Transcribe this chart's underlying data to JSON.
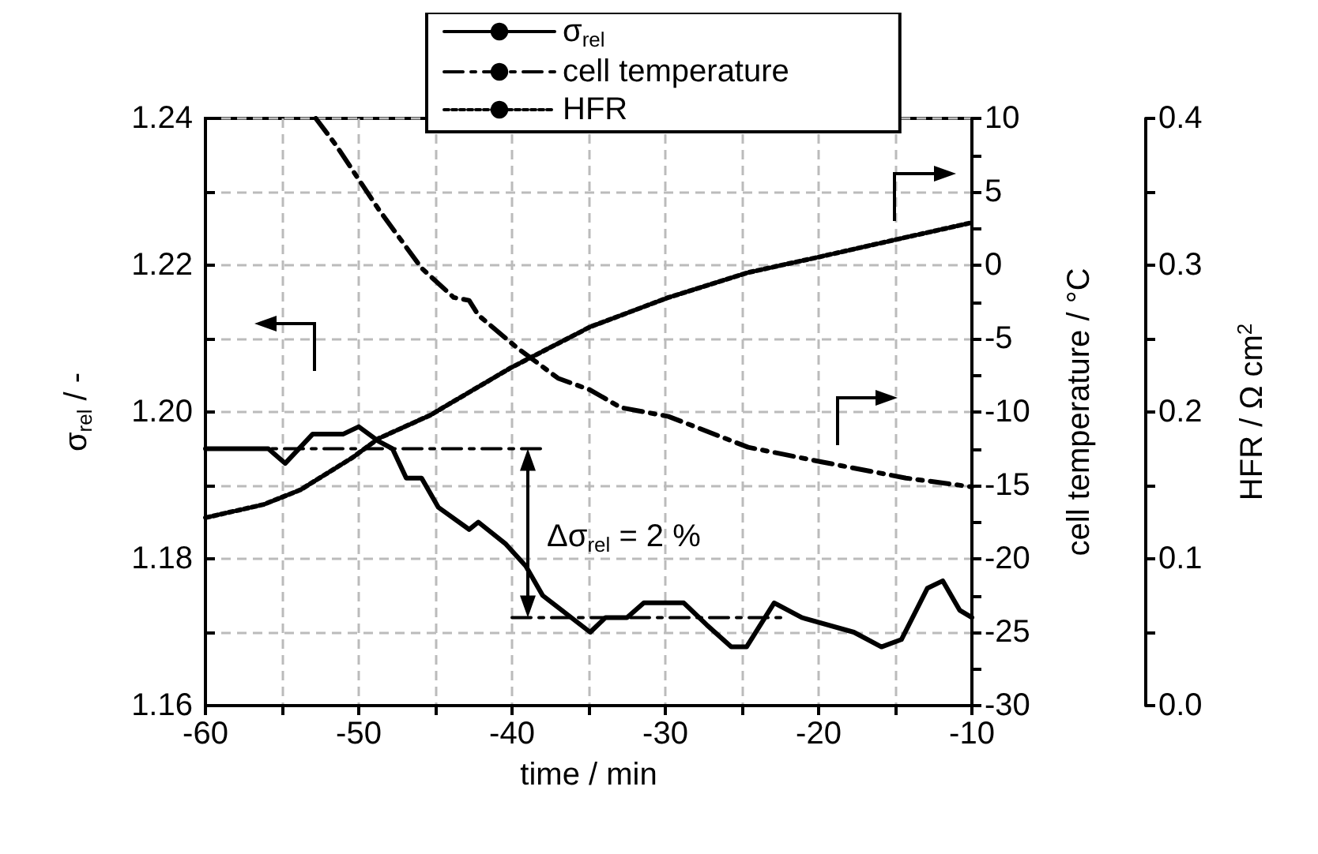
{
  "chart_data": {
    "type": "line",
    "xlabel": "time / min",
    "ylabel": "σ$_{rel}$ / -",
    "y2label": "cell temperature / °C",
    "y3label": "HFR / Ω cm$^{2}$",
    "xlim": [
      -60,
      -10
    ],
    "xticks": [
      -60,
      -50,
      -40,
      -30,
      -20,
      -10
    ],
    "ylim": [
      1.16,
      1.24
    ],
    "yticks": [
      1.16,
      1.18,
      {
        "value": 1.2,
        "label": "1.20"
      },
      1.22,
      1.24
    ],
    "y2lim": [
      -30,
      10
    ],
    "y2ticks": [
      -30,
      -25,
      -20,
      -15,
      -10,
      -5,
      0,
      5,
      10
    ],
    "y3lim": [
      0,
      0.4
    ],
    "y3ticks": [
      {
        "value": 0,
        "label": "0.0"
      },
      0.1,
      0.2,
      0.3,
      0.4
    ],
    "grid": true,
    "legend": "top",
    "marker": "none",
    "annotations": [
      "Δσ$_{rel}$ = 2 %"
    ],
    "series": [
      {
        "name": "σ$_{rel}$",
        "color": "#000000",
        "line_style": "solid",
        "x": [
          -60,
          -55.9,
          -54.8,
          -53,
          -51,
          -50,
          -48.7,
          -47.8,
          -46.9,
          -45.9,
          -44.8,
          -42.8,
          -42.2,
          -40.4,
          -39.1,
          -38,
          -34.9,
          -33.9,
          -32.5,
          -31.4,
          -29.8,
          -28.8,
          -27.3,
          -25.7,
          -24.7,
          -22.9,
          -21.1,
          -17.7,
          -15.9,
          -14.6,
          -12.9,
          -11.9,
          -10.8,
          -10
        ],
        "values": [
          1.195,
          1.195,
          1.193,
          1.197,
          1.197,
          1.198,
          1.196,
          1.195,
          1.191,
          1.191,
          1.187,
          1.184,
          1.185,
          1.182,
          1.179,
          1.175,
          1.17,
          1.172,
          1.172,
          1.174,
          1.174,
          1.174,
          1.171,
          1.168,
          1.168,
          1.174,
          1.172,
          1.17,
          1.168,
          1.169,
          1.176,
          1.177,
          1.173,
          1.172
        ]
      },
      {
        "name": "cell temperature",
        "color": "#000000",
        "line_style": "dashed",
        "axis": "y2",
        "x": [
          -52.8,
          -51.5,
          -48.7,
          -45.9,
          -43.8,
          -42.8,
          -42.2,
          -39.7,
          -37,
          -34.9,
          -32.9,
          -29.8,
          -24.6,
          -19.8,
          -14.3,
          -10
        ],
        "values": [
          10,
          8.2,
          3.8,
          -0.2,
          -2.2,
          -2.4,
          -3.4,
          -5.6,
          -7.7,
          -8.5,
          -9.7,
          -10.3,
          -12.4,
          -13.4,
          -14.5,
          -15.1
        ]
      },
      {
        "name": "HFR",
        "color": "#000000",
        "line_style": "dotted",
        "axis": "y3",
        "x": [
          -60,
          -56.2,
          -53.8,
          -50.4,
          -48.7,
          -45.3,
          -44.5,
          -40.1,
          -34.9,
          -29.8,
          -24.6,
          -19.8,
          -14.3,
          -10
        ],
        "values": [
          0.128,
          0.137,
          0.147,
          0.169,
          0.182,
          0.198,
          0.203,
          0.23,
          0.258,
          0.278,
          0.295,
          0.306,
          0.319,
          0.329
        ]
      },
      {
        "color": "#000000",
        "line_style": "dashed",
        "x": [
          -60,
          -38
        ],
        "values": [
          1.195,
          1.195
        ]
      },
      {
        "color": "#000000",
        "line_style": "dashed",
        "x": [
          -40,
          -22
        ],
        "values": [
          1.172,
          1.172
        ]
      }
    ]
  }
}
